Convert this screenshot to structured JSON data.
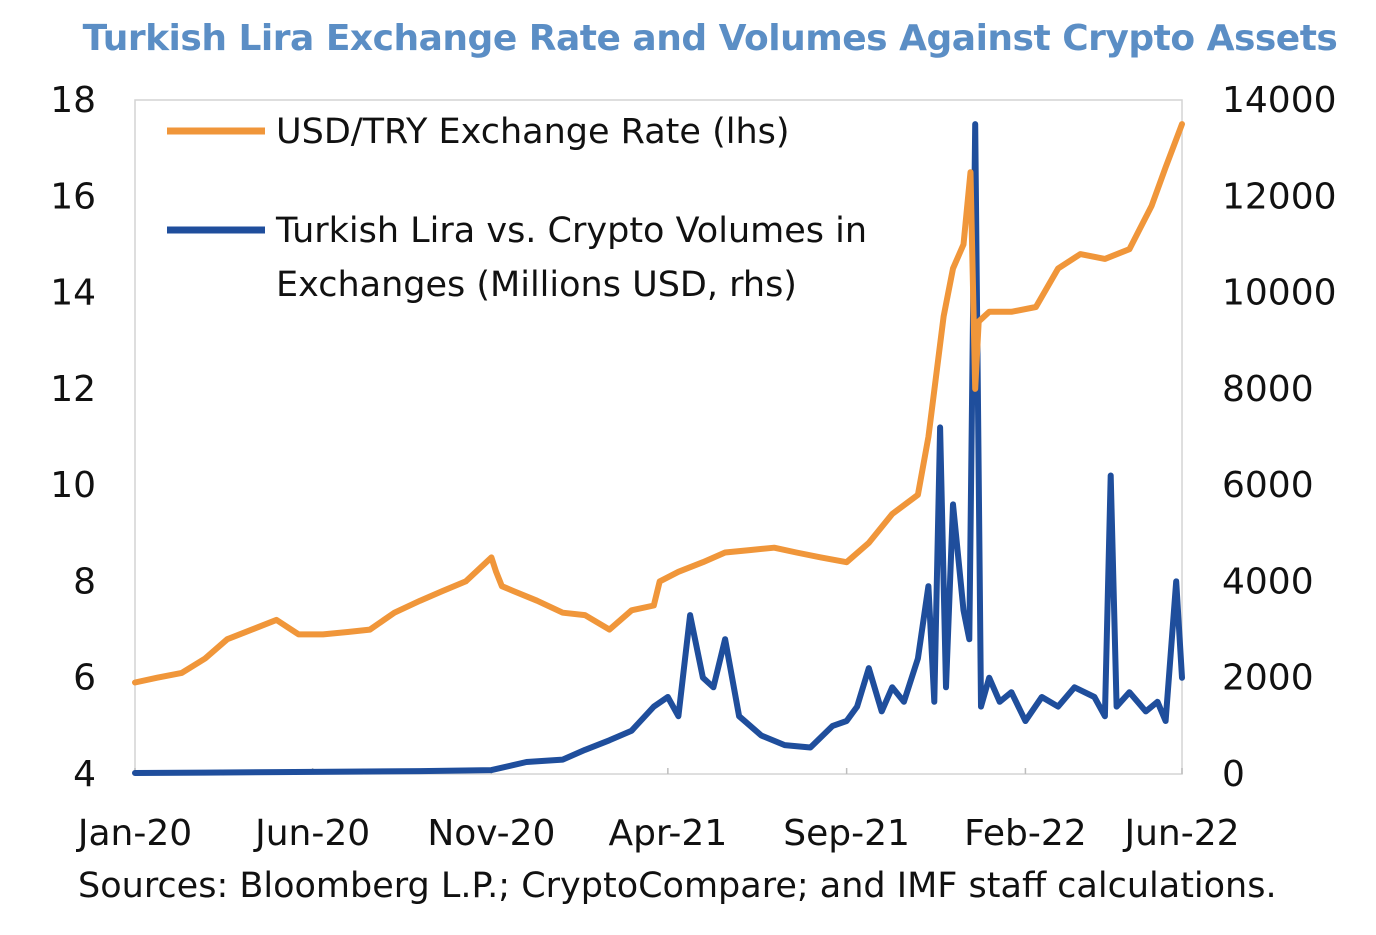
{
  "chart_data": {
    "type": "line",
    "title": "Turkish Lira Exchange Rate and Volumes Against Crypto Assets",
    "x_tick_labels": [
      "Jan-20",
      "Jun-20",
      "Nov-20",
      "Apr-21",
      "Sep-21",
      "Feb-22",
      "Jun-22"
    ],
    "y_left": {
      "ylim": [
        4,
        18
      ],
      "ticks": [
        "4",
        "6",
        "8",
        "10",
        "12",
        "14",
        "16",
        "18"
      ]
    },
    "y_right": {
      "ylim": [
        0,
        14000
      ],
      "ticks": [
        "0",
        "2000",
        "4000",
        "6000",
        "8000",
        "10000",
        "12000",
        "14000"
      ]
    },
    "grid": false,
    "legend_position": "top-left",
    "series": [
      {
        "name": "USD/TRY Exchange Rate (lhs)",
        "axis": "left",
        "color": "#f0963a",
        "x": [
          "2020-01-01",
          "2020-01-20",
          "2020-02-10",
          "2020-03-01",
          "2020-03-20",
          "2020-04-10",
          "2020-05-01",
          "2020-05-20",
          "2020-06-10",
          "2020-07-01",
          "2020-07-20",
          "2020-08-10",
          "2020-09-01",
          "2020-09-20",
          "2020-10-10",
          "2020-11-01",
          "2020-11-05",
          "2020-11-10",
          "2020-11-20",
          "2020-12-10",
          "2021-01-01",
          "2021-01-20",
          "2021-02-10",
          "2021-03-01",
          "2021-03-20",
          "2021-03-25",
          "2021-04-10",
          "2021-05-01",
          "2021-05-20",
          "2021-06-10",
          "2021-07-01",
          "2021-07-20",
          "2021-08-10",
          "2021-09-01",
          "2021-09-20",
          "2021-10-10",
          "2021-11-01",
          "2021-11-10",
          "2021-11-23",
          "2021-12-01",
          "2021-12-10",
          "2021-12-16",
          "2021-12-20",
          "2021-12-23",
          "2022-01-01",
          "2022-01-20",
          "2022-02-10",
          "2022-03-01",
          "2022-03-20",
          "2022-04-10",
          "2022-05-01",
          "2022-05-20",
          "2022-06-01",
          "2022-06-15"
        ],
        "values": [
          5.9,
          6.0,
          6.1,
          6.4,
          6.8,
          7.0,
          7.2,
          6.9,
          6.9,
          6.95,
          7.0,
          7.35,
          7.6,
          7.8,
          8.0,
          8.5,
          8.2,
          7.9,
          7.8,
          7.6,
          7.35,
          7.3,
          7.0,
          7.4,
          7.5,
          8.0,
          8.2,
          8.4,
          8.6,
          8.65,
          8.7,
          8.6,
          8.5,
          8.4,
          8.8,
          9.4,
          9.8,
          11.0,
          13.5,
          14.5,
          15.0,
          16.5,
          12.0,
          13.4,
          13.6,
          13.6,
          13.7,
          14.5,
          14.8,
          14.7,
          14.9,
          15.8,
          16.6,
          17.5
        ]
      },
      {
        "name": "Turkish Lira vs. Crypto Volumes in Exchanges (Millions USD, rhs)",
        "axis": "right",
        "color": "#1f4e9c",
        "x": [
          "2020-01-01",
          "2020-03-01",
          "2020-05-01",
          "2020-07-01",
          "2020-09-01",
          "2020-11-01",
          "2020-12-01",
          "2021-01-01",
          "2021-01-20",
          "2021-02-10",
          "2021-03-01",
          "2021-03-20",
          "2021-04-01",
          "2021-04-10",
          "2021-04-20",
          "2021-05-01",
          "2021-05-10",
          "2021-05-20",
          "2021-06-01",
          "2021-06-20",
          "2021-07-10",
          "2021-08-01",
          "2021-08-20",
          "2021-09-01",
          "2021-09-10",
          "2021-09-20",
          "2021-10-01",
          "2021-10-10",
          "2021-10-20",
          "2021-11-01",
          "2021-11-10",
          "2021-11-15",
          "2021-11-20",
          "2021-11-25",
          "2021-12-01",
          "2021-12-10",
          "2021-12-15",
          "2021-12-20",
          "2021-12-25",
          "2022-01-01",
          "2022-01-10",
          "2022-01-20",
          "2022-02-01",
          "2022-02-15",
          "2022-03-01",
          "2022-03-15",
          "2022-04-01",
          "2022-04-10",
          "2022-04-15",
          "2022-04-20",
          "2022-05-01",
          "2022-05-15",
          "2022-05-25",
          "2022-06-01",
          "2022-06-10",
          "2022-06-15"
        ],
        "values": [
          20,
          30,
          40,
          50,
          60,
          80,
          250,
          300,
          500,
          700,
          900,
          1400,
          1600,
          1200,
          3300,
          2000,
          1800,
          2800,
          1200,
          800,
          600,
          550,
          1000,
          1100,
          1400,
          2200,
          1300,
          1800,
          1500,
          2400,
          3900,
          1500,
          7200,
          1800,
          5600,
          3400,
          2800,
          13500,
          1400,
          2000,
          1500,
          1700,
          1100,
          1600,
          1400,
          1800,
          1600,
          1200,
          6200,
          1400,
          1700,
          1300,
          1500,
          1100,
          4000,
          2000
        ]
      }
    ],
    "source_note": "Sources: Bloomberg L.P.; CryptoCompare; and IMF staff calculations."
  }
}
